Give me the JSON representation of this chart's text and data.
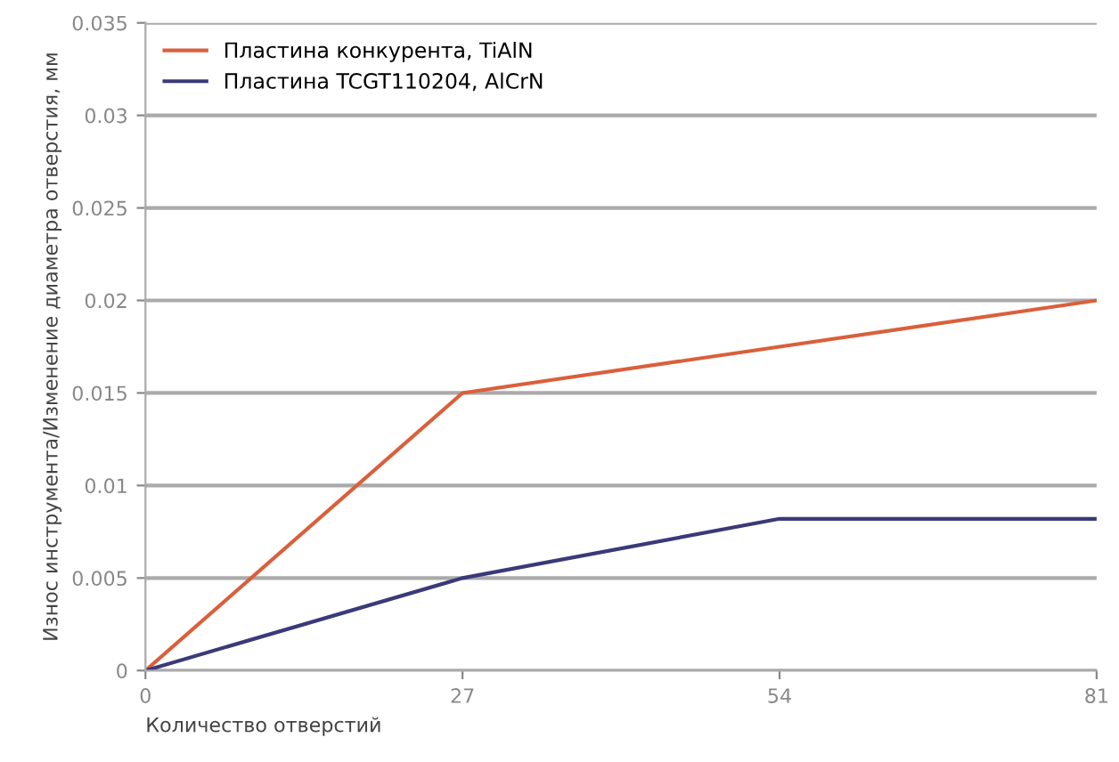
{
  "chart_data": {
    "type": "line",
    "xlabel": "Количество отверстий",
    "ylabel": "Износ инструмента/Изменение диаметра отверстия, мм",
    "x": [
      0,
      27,
      54,
      81
    ],
    "series": [
      {
        "name": "Пластина конкурента, TiAlN",
        "color": "#d9603b",
        "values": [
          0,
          0.015,
          0.0175,
          0.02
        ]
      },
      {
        "name": "Пластина TCGT110204, AlCrN",
        "color": "#3a3a7a",
        "values": [
          0,
          0.005,
          0.0082,
          0.0082
        ]
      }
    ],
    "xlim": [
      0,
      81
    ],
    "xticks": [
      0,
      27,
      54,
      81
    ],
    "ylim": [
      0,
      0.035
    ],
    "yticks": [
      0,
      0.005,
      0.01,
      0.015,
      0.02,
      0.025,
      0.03,
      0.035
    ],
    "grid": "y",
    "legend": "top left",
    "marker": "none",
    "line_style": "solid"
  }
}
